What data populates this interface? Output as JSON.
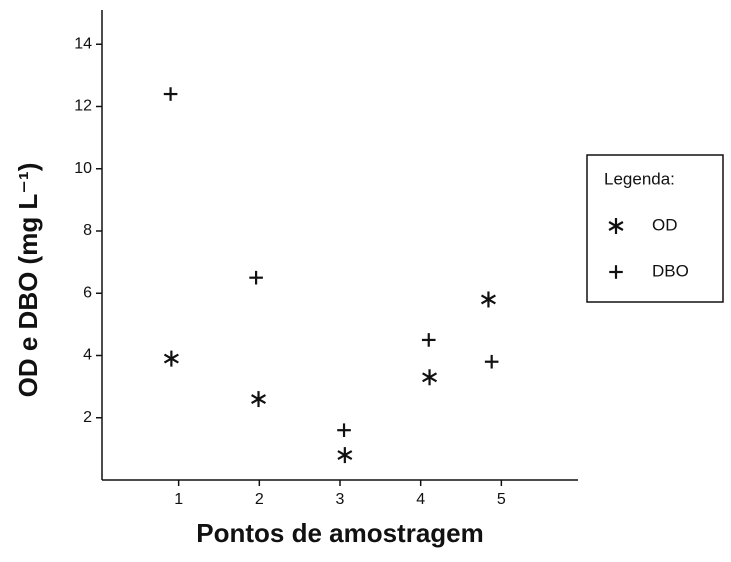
{
  "chart_data": {
    "type": "scatter",
    "x_label": "Pontos de amostragem",
    "y_label": "OD e DBO (mg L⁻¹)",
    "legend_title": "Legenda:",
    "legend": "right",
    "grid": false,
    "xlim": [
      0.05,
      5.95
    ],
    "xticks": [
      1,
      2,
      3,
      4,
      5
    ],
    "ylim": [
      0,
      15.1
    ],
    "yticks": [
      2,
      4,
      6,
      8,
      10,
      12,
      14
    ],
    "series": [
      {
        "name": "OD",
        "color": "#111111",
        "marker": "asterisk",
        "x": [
          0.91,
          1.99,
          3.06,
          4.11,
          4.84
        ],
        "values": [
          3.9,
          2.6,
          0.8,
          3.3,
          5.8
        ]
      },
      {
        "name": "DBO",
        "color": "#111111",
        "marker": "plus",
        "x": [
          0.9,
          1.96,
          3.05,
          4.1,
          4.88
        ],
        "values": [
          12.4,
          6.5,
          1.6,
          4.5,
          3.8
        ]
      }
    ]
  }
}
